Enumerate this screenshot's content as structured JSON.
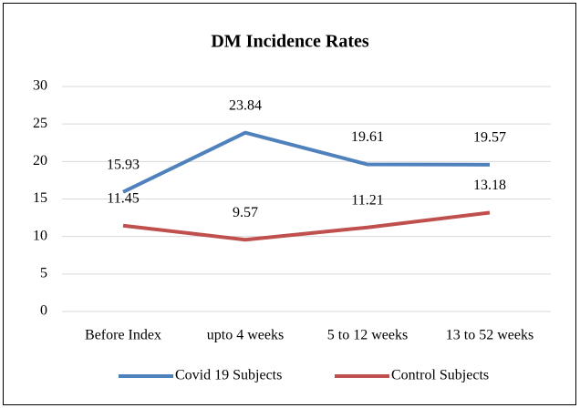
{
  "chart_data": {
    "type": "line",
    "title": "DM Incidence Rates",
    "categories": [
      "Before Index",
      "upto 4 weeks",
      "5 to 12 weeks",
      "13 to 52 weeks"
    ],
    "series": [
      {
        "name": "Covid 19 Subjects",
        "color": "#4f81bd",
        "values": [
          15.93,
          23.84,
          19.61,
          19.57
        ]
      },
      {
        "name": "Control Subjects",
        "color": "#c0504d",
        "values": [
          11.45,
          9.57,
          11.21,
          13.18
        ]
      }
    ],
    "ylim": [
      0,
      30
    ],
    "yticks": [
      0,
      5,
      10,
      15,
      20,
      25,
      30
    ],
    "grid": true,
    "legend": "bottom"
  }
}
